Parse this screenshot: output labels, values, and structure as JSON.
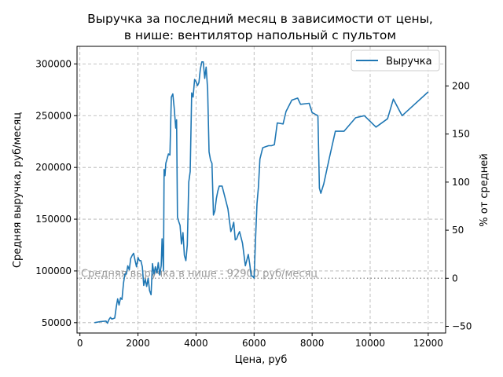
{
  "chart_data": {
    "type": "line",
    "title": [
      "Выручка за последний месяц в зависимости от цены,",
      "в нише: вентилятор напольный с пультом"
    ],
    "xlabel": "Цена, руб",
    "ylabel": "Средняя выручка, руб/месяц",
    "ylabel_right": "% от средней",
    "xlim": [
      -100,
      12600
    ],
    "ylim": [
      40000,
      317000
    ],
    "xticks": [
      0,
      2000,
      4000,
      6000,
      8000,
      10000,
      12000
    ],
    "yticks": [
      50000,
      100000,
      150000,
      200000,
      250000,
      300000
    ],
    "yticks_right": [
      -50,
      0,
      50,
      100,
      150,
      200
    ],
    "grid": true,
    "legend_position": "top-right",
    "colors": {
      "line": "#1f77b4",
      "reference": "#999999",
      "grid": "#b0b0b0"
    },
    "reference_line": {
      "value": 92900,
      "label": "Средняя выручка в нише - 92900 руб/месяц"
    },
    "series": [
      {
        "name": "Выручка",
        "x": [
          500,
          700,
          900,
          950,
          1000,
          1050,
          1100,
          1150,
          1200,
          1250,
          1300,
          1350,
          1400,
          1450,
          1500,
          1550,
          1600,
          1650,
          1700,
          1750,
          1800,
          1850,
          1900,
          1950,
          2000,
          2050,
          2100,
          2150,
          2200,
          2250,
          2300,
          2350,
          2400,
          2450,
          2500,
          2550,
          2600,
          2650,
          2700,
          2750,
          2800,
          2830,
          2860,
          2880,
          2900,
          2930,
          2960,
          3000,
          3050,
          3100,
          3150,
          3200,
          3250,
          3300,
          3330,
          3360,
          3400,
          3450,
          3500,
          3550,
          3600,
          3650,
          3700,
          3750,
          3800,
          3850,
          3900,
          3950,
          4000,
          4050,
          4100,
          4150,
          4200,
          4250,
          4300,
          4350,
          4400,
          4450,
          4500,
          4550,
          4600,
          4650,
          4700,
          4750,
          4800,
          4900,
          5000,
          5100,
          5200,
          5250,
          5300,
          5350,
          5400,
          5450,
          5500,
          5600,
          5700,
          5800,
          5850,
          5900,
          5950,
          6000,
          6050,
          6100,
          6150,
          6200,
          6300,
          6400,
          6500,
          6600,
          6700,
          6800,
          7000,
          7100,
          7300,
          7500,
          7600,
          7900,
          8000,
          8200,
          8250,
          8300,
          8400,
          8600,
          8800,
          9000,
          9100,
          9500,
          9800,
          10200,
          10600,
          10800,
          11100,
          12000
        ],
        "y": [
          50000,
          51000,
          51500,
          49500,
          53000,
          55000,
          53500,
          54000,
          54500,
          65000,
          73000,
          67000,
          74000,
          72500,
          88000,
          97000,
          97000,
          105000,
          101000,
          112000,
          115000,
          117000,
          110000,
          104000,
          113000,
          110000,
          110000,
          104000,
          86000,
          92000,
          85000,
          93000,
          81000,
          77000,
          107000,
          97000,
          104000,
          98000,
          108000,
          96000,
          105000,
          131000,
          112000,
          100000,
          198000,
          192000,
          204000,
          208000,
          213000,
          212000,
          268000,
          271000,
          257000,
          238000,
          246000,
          152000,
          148000,
          144000,
          126000,
          137000,
          115000,
          110000,
          125000,
          186000,
          196000,
          272000,
          268000,
          285000,
          283000,
          279000,
          282000,
          295000,
          302000,
          302000,
          286000,
          297000,
          275000,
          215000,
          207000,
          204000,
          154000,
          158000,
          170000,
          177000,
          182000,
          182000,
          171000,
          160000,
          138000,
          142000,
          147000,
          130000,
          131000,
          135000,
          138000,
          127000,
          105000,
          116000,
          107000,
          95000,
          95000,
          93000,
          130000,
          165000,
          181000,
          208000,
          219000,
          220000,
          221000,
          221000,
          222000,
          243000,
          242000,
          254000,
          265000,
          267000,
          261000,
          262000,
          253000,
          250000,
          180000,
          175000,
          184000,
          210000,
          235000,
          235000,
          235000,
          248000,
          250000,
          239000,
          247000,
          266000,
          250000,
          273000
        ]
      }
    ]
  }
}
